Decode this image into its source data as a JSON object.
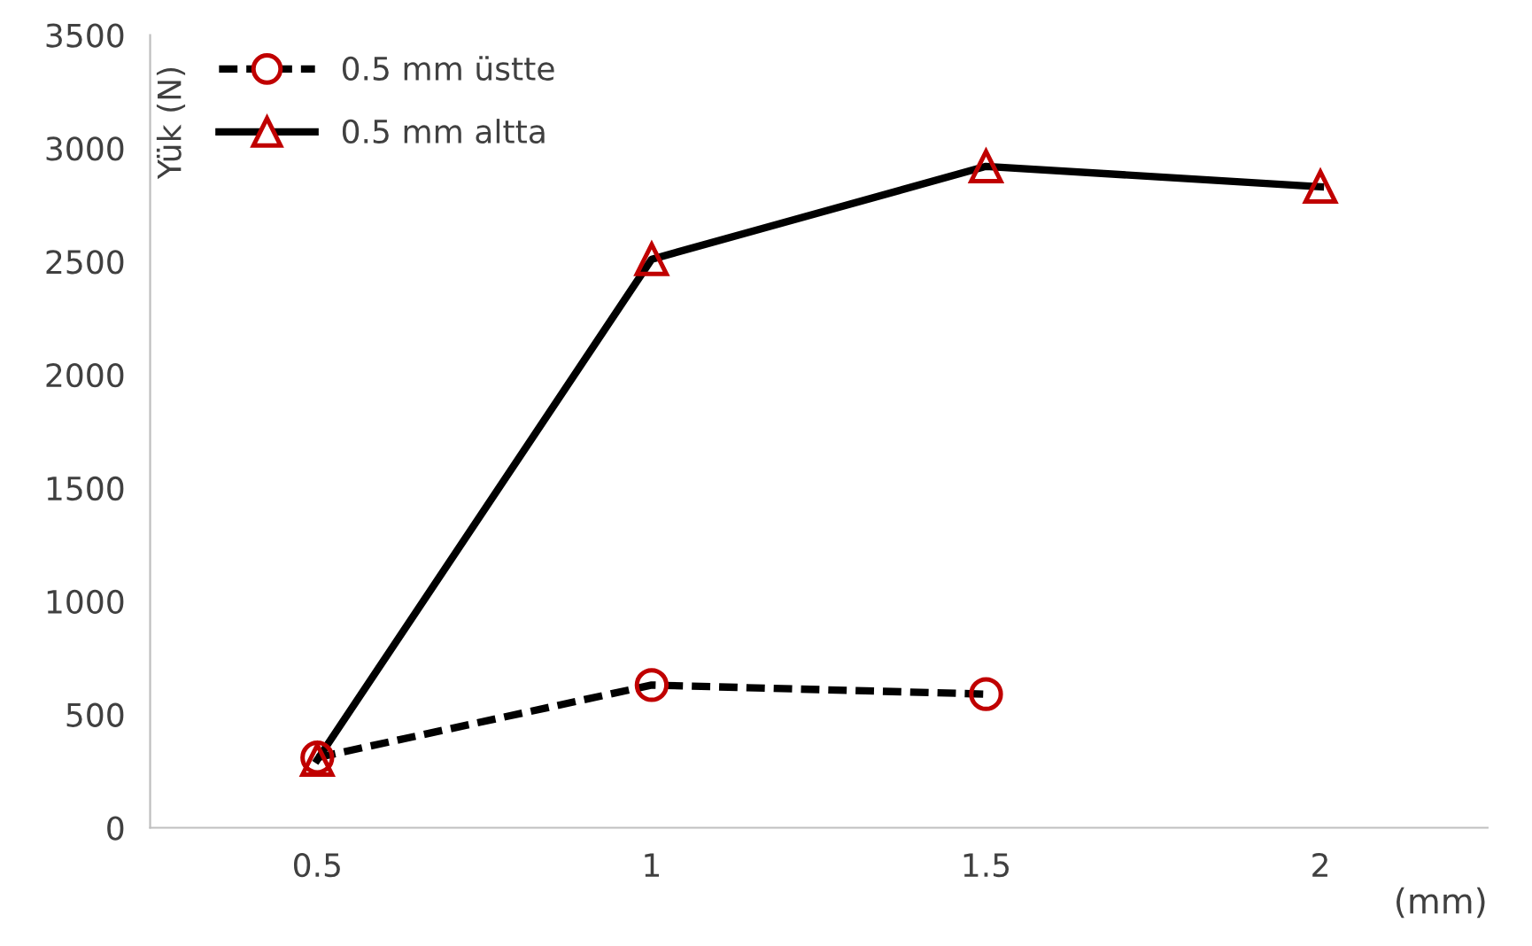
{
  "chart_data": {
    "type": "line",
    "ylabel": "Yük (N)",
    "xlabel": "(mm)",
    "categories": [
      "0.5",
      "1",
      "1.5",
      "2"
    ],
    "series": [
      {
        "name": "0.5 mm üstte",
        "color": "#000000",
        "values": [
          310,
          630,
          590,
          null
        ],
        "marker": "circle",
        "line_style": "dashed"
      },
      {
        "name": "0.5 mm altta",
        "color": "#000000",
        "values": [
          300,
          2510,
          2920,
          2830
        ],
        "marker": "triangle",
        "line_style": "solid"
      }
    ],
    "ylim": [
      0,
      3500
    ],
    "yticks": [
      0,
      500,
      1000,
      1500,
      2000,
      2500,
      3000,
      3500
    ],
    "grid": false,
    "legend": "top left"
  }
}
